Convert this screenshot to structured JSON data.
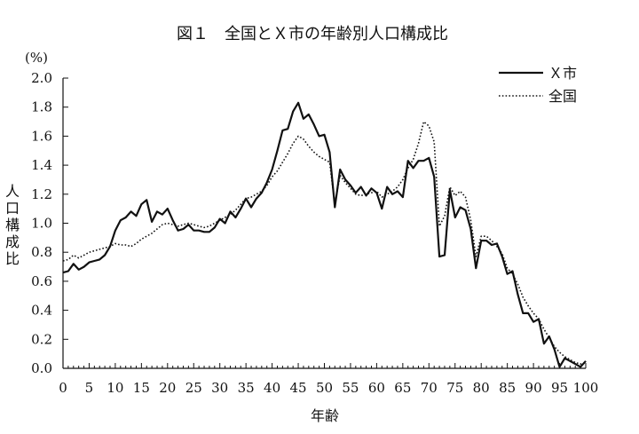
{
  "chart_data": {
    "type": "line",
    "title": "図１　全国とＸ市の年齢別人口構成比",
    "xlabel": "年齢",
    "ylabel": "人口構成比",
    "yunit": "(%)",
    "xlim": [
      0,
      100
    ],
    "ylim": [
      0.0,
      2.0
    ],
    "xticks": [
      0,
      5,
      10,
      15,
      20,
      25,
      30,
      35,
      40,
      45,
      50,
      55,
      60,
      65,
      70,
      75,
      80,
      85,
      90,
      95,
      100
    ],
    "yticks": [
      0.0,
      0.2,
      0.4,
      0.6,
      0.8,
      1.0,
      1.2,
      1.4,
      1.6,
      1.8,
      2.0
    ],
    "ytick_labels": [
      "0.0",
      "0.2",
      "0.4",
      "0.6",
      "0.8",
      "1.0",
      "1.2",
      "1.4",
      "1.6",
      "1.8",
      "2.0"
    ],
    "grid": false,
    "legend_position": "top-right",
    "series": [
      {
        "name": "Ｘ市",
        "style": "solid",
        "color": "#111111",
        "x": [
          0,
          1,
          2,
          3,
          4,
          5,
          6,
          7,
          8,
          9,
          10,
          11,
          12,
          13,
          14,
          15,
          16,
          17,
          18,
          19,
          20,
          21,
          22,
          23,
          24,
          25,
          26,
          27,
          28,
          29,
          30,
          31,
          32,
          33,
          34,
          35,
          36,
          37,
          38,
          39,
          40,
          41,
          42,
          43,
          44,
          45,
          46,
          47,
          48,
          49,
          50,
          51,
          52,
          53,
          54,
          55,
          56,
          57,
          58,
          59,
          60,
          61,
          62,
          63,
          64,
          65,
          66,
          67,
          68,
          69,
          70,
          71,
          72,
          73,
          74,
          75,
          76,
          77,
          78,
          79,
          80,
          81,
          82,
          83,
          84,
          85,
          86,
          87,
          88,
          89,
          90,
          91,
          92,
          93,
          94,
          95,
          96,
          97,
          98,
          99,
          100
        ],
        "values": [
          0.66,
          0.67,
          0.72,
          0.68,
          0.7,
          0.73,
          0.74,
          0.75,
          0.78,
          0.84,
          0.95,
          1.02,
          1.04,
          1.08,
          1.05,
          1.13,
          1.16,
          1.01,
          1.08,
          1.06,
          1.1,
          1.02,
          0.95,
          0.96,
          0.99,
          0.95,
          0.95,
          0.94,
          0.94,
          0.97,
          1.03,
          1.0,
          1.08,
          1.04,
          1.1,
          1.17,
          1.11,
          1.17,
          1.21,
          1.28,
          1.37,
          1.5,
          1.64,
          1.65,
          1.77,
          1.83,
          1.72,
          1.75,
          1.68,
          1.6,
          1.61,
          1.49,
          1.11,
          1.37,
          1.3,
          1.26,
          1.21,
          1.25,
          1.19,
          1.24,
          1.21,
          1.1,
          1.25,
          1.2,
          1.22,
          1.18,
          1.43,
          1.38,
          1.43,
          1.43,
          1.45,
          1.32,
          0.77,
          0.78,
          1.23,
          1.04,
          1.11,
          1.09,
          0.96,
          0.69,
          0.88,
          0.88,
          0.85,
          0.86,
          0.77,
          0.65,
          0.67,
          0.51,
          0.38,
          0.38,
          0.32,
          0.34,
          0.17,
          0.22,
          0.13,
          0.01,
          0.07,
          0.05,
          0.03,
          0.01,
          0.05
        ]
      },
      {
        "name": "全国",
        "style": "dotted",
        "color": "#111111",
        "x": [
          0,
          1,
          2,
          3,
          4,
          5,
          6,
          7,
          8,
          9,
          10,
          11,
          12,
          13,
          14,
          15,
          16,
          17,
          18,
          19,
          20,
          21,
          22,
          23,
          24,
          25,
          26,
          27,
          28,
          29,
          30,
          31,
          32,
          33,
          34,
          35,
          36,
          37,
          38,
          39,
          40,
          41,
          42,
          43,
          44,
          45,
          46,
          47,
          48,
          49,
          50,
          51,
          52,
          53,
          54,
          55,
          56,
          57,
          58,
          59,
          60,
          61,
          62,
          63,
          64,
          65,
          66,
          67,
          68,
          69,
          70,
          71,
          72,
          73,
          74,
          75,
          76,
          77,
          78,
          79,
          80,
          81,
          82,
          83,
          84,
          85,
          86,
          87,
          88,
          89,
          90,
          91,
          92,
          93,
          94,
          95,
          96,
          97,
          98,
          99,
          100
        ],
        "values": [
          0.74,
          0.75,
          0.78,
          0.76,
          0.78,
          0.8,
          0.81,
          0.82,
          0.83,
          0.84,
          0.86,
          0.85,
          0.85,
          0.84,
          0.86,
          0.89,
          0.91,
          0.93,
          0.96,
          0.99,
          1.0,
          0.99,
          0.98,
          0.99,
          1.0,
          0.99,
          0.98,
          0.97,
          0.98,
          1.0,
          1.02,
          1.04,
          1.06,
          1.09,
          1.13,
          1.17,
          1.18,
          1.2,
          1.22,
          1.26,
          1.32,
          1.36,
          1.42,
          1.48,
          1.55,
          1.6,
          1.58,
          1.53,
          1.49,
          1.46,
          1.44,
          1.42,
          1.13,
          1.33,
          1.28,
          1.24,
          1.2,
          1.19,
          1.2,
          1.21,
          1.22,
          1.18,
          1.2,
          1.22,
          1.25,
          1.3,
          1.38,
          1.44,
          1.55,
          1.7,
          1.67,
          1.56,
          0.98,
          1.05,
          1.25,
          1.19,
          1.22,
          1.18,
          1.02,
          0.77,
          0.91,
          0.91,
          0.88,
          0.84,
          0.79,
          0.69,
          0.65,
          0.58,
          0.49,
          0.43,
          0.38,
          0.34,
          0.27,
          0.21,
          0.15,
          0.11,
          0.08,
          0.06,
          0.04,
          0.03,
          0.04
        ]
      }
    ]
  }
}
